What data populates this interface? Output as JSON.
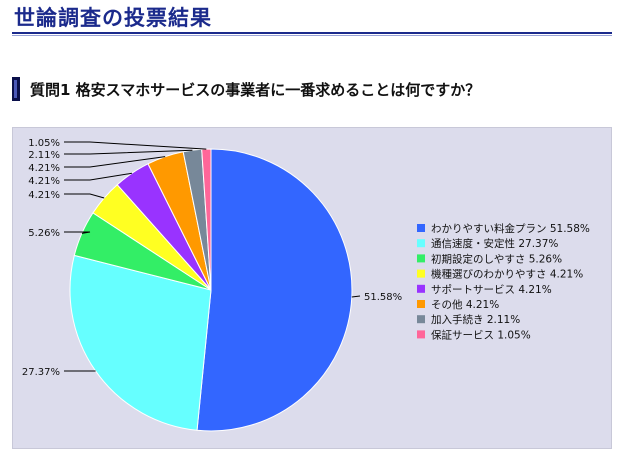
{
  "page_title": "世論調査の投票結果",
  "question_title": "質問1 格安スマホサービスの事業者に一番求めることは何ですか？",
  "chart_data": {
    "type": "pie",
    "slices": [
      {
        "name": "わかりやすい料金プラン",
        "value": 51.58,
        "label": "51.58%",
        "legend": "わかりやすい料金プラン 51.58%",
        "color": "#3366ff"
      },
      {
        "name": "通信速度・安定性",
        "value": 27.37,
        "label": "27.37%",
        "legend": "通信速度・安定性 27.37%",
        "color": "#66ffff"
      },
      {
        "name": "初期設定のしやすさ",
        "value": 5.26,
        "label": "5.26%",
        "legend": "初期設定のしやすさ 5.26%",
        "color": "#33ee66"
      },
      {
        "name": "機種選びのわかりやすさ",
        "value": 4.21,
        "label": "4.21%",
        "legend": "機種選びのわかりやすさ 4.21%",
        "color": "#ffff22"
      },
      {
        "name": "サポートサービス",
        "value": 4.21,
        "label": "4.21%",
        "legend": "サポートサービス 4.21%",
        "color": "#9933ff"
      },
      {
        "name": "その他",
        "value": 4.21,
        "label": "4.21%",
        "legend": "その他 4.21%",
        "color": "#ff9900"
      },
      {
        "name": "加入手続き",
        "value": 2.11,
        "label": "2.11%",
        "legend": "加入手続き 2.11%",
        "color": "#778899"
      },
      {
        "name": "保証サービス",
        "value": 1.05,
        "label": "1.05%",
        "legend": "保証サービス 1.05%",
        "color": "#ff6699"
      }
    ],
    "legend_position": "right"
  }
}
